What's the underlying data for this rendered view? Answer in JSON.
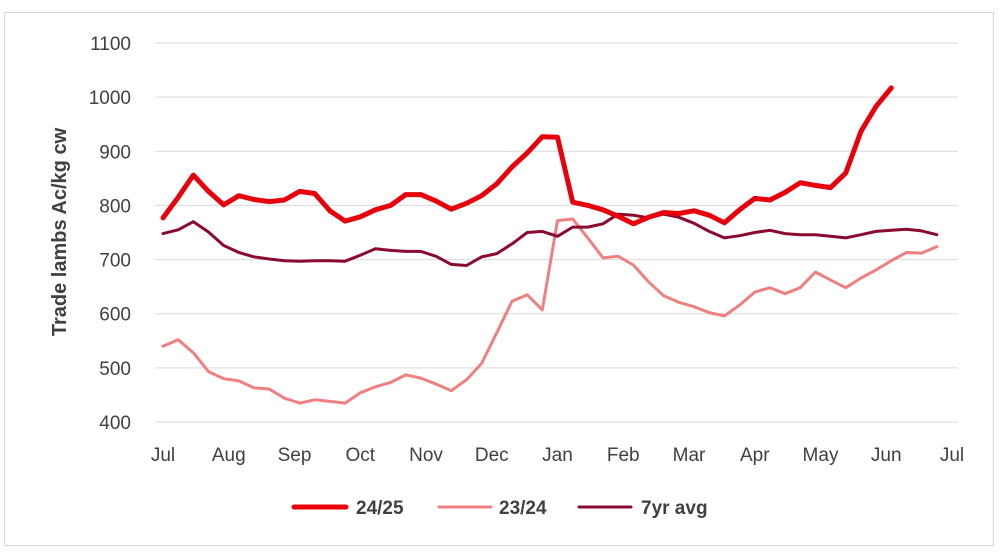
{
  "chart_data": {
    "type": "line",
    "ylabel": "Trade lambs Ac/kg cw",
    "xlabel": "",
    "ylim": [
      400,
      1100
    ],
    "yticks": [
      400,
      500,
      600,
      700,
      800,
      900,
      1000,
      1100
    ],
    "x_month_labels": [
      "Jul",
      "Aug",
      "Sep",
      "Oct",
      "Nov",
      "Dec",
      "Jan",
      "Feb",
      "Mar",
      "Apr",
      "May",
      "Jun",
      "Jul"
    ],
    "x_range_weeks": [
      0,
      52
    ],
    "grid": true,
    "legend_position": "bottom",
    "series": [
      {
        "name": "24/25",
        "color": "#e8000b",
        "width": 5,
        "x": [
          0,
          1,
          2,
          3,
          4,
          5,
          6,
          7,
          8,
          9,
          10,
          11,
          12,
          13,
          14,
          15,
          16,
          17,
          18,
          19,
          20,
          21,
          22,
          23,
          24,
          25,
          26,
          27,
          28,
          29,
          30,
          31,
          32,
          33,
          34,
          35,
          36,
          37,
          38,
          39,
          40,
          41,
          42,
          43,
          44,
          45,
          46,
          47,
          48,
          49
        ],
        "values": [
          777,
          815,
          856,
          826,
          801,
          818,
          811,
          807,
          810,
          826,
          822,
          790,
          771,
          779,
          792,
          800,
          820,
          820,
          808,
          793,
          804,
          818,
          840,
          871,
          897,
          927,
          926,
          806,
          800,
          792,
          780,
          766,
          778,
          787,
          785,
          790,
          782,
          768,
          792,
          813,
          810,
          824,
          842,
          837,
          833,
          860,
          937,
          983,
          1017,
          null
        ]
      },
      {
        "name": "23/24",
        "color": "#f08080",
        "width": 3,
        "x": [
          0,
          1,
          2,
          3,
          4,
          5,
          6,
          7,
          8,
          9,
          10,
          11,
          12,
          13,
          14,
          15,
          16,
          17,
          18,
          19,
          20,
          21,
          22,
          23,
          24,
          25,
          26,
          27,
          28,
          29,
          30,
          31,
          32,
          33,
          34,
          35,
          36,
          37,
          38,
          39,
          40,
          41,
          42,
          43,
          44,
          45,
          46,
          47,
          48,
          49,
          50,
          51,
          52
        ],
        "values": [
          540,
          552,
          528,
          493,
          480,
          476,
          463,
          461,
          444,
          435,
          441,
          438,
          435,
          454,
          465,
          473,
          487,
          481,
          470,
          458,
          478,
          508,
          565,
          623,
          635,
          607,
          772,
          775,
          740,
          703,
          706,
          690,
          659,
          633,
          621,
          613,
          602,
          596,
          616,
          640,
          648,
          637,
          648,
          677,
          662,
          648,
          666,
          681,
          698,
          713,
          712,
          724,
          null
        ]
      },
      {
        "name": "7yr avg",
        "color": "#8b0a2f",
        "width": 3,
        "x": [
          0,
          1,
          2,
          3,
          4,
          5,
          6,
          7,
          8,
          9,
          10,
          11,
          12,
          13,
          14,
          15,
          16,
          17,
          18,
          19,
          20,
          21,
          22,
          23,
          24,
          25,
          26,
          27,
          28,
          29,
          30,
          31,
          32,
          33,
          34,
          35,
          36,
          37,
          38,
          39,
          40,
          41,
          42,
          43,
          44,
          45,
          46,
          47,
          48,
          49,
          50,
          51,
          52
        ],
        "values": [
          748,
          755,
          770,
          751,
          726,
          713,
          705,
          701,
          698,
          697,
          698,
          698,
          697,
          708,
          720,
          717,
          715,
          715,
          706,
          691,
          689,
          705,
          711,
          729,
          750,
          752,
          743,
          760,
          760,
          766,
          784,
          782,
          777,
          784,
          778,
          767,
          752,
          740,
          744,
          750,
          754,
          748,
          746,
          746,
          743,
          740,
          746,
          752,
          754,
          756,
          753,
          746,
          null
        ]
      }
    ]
  }
}
